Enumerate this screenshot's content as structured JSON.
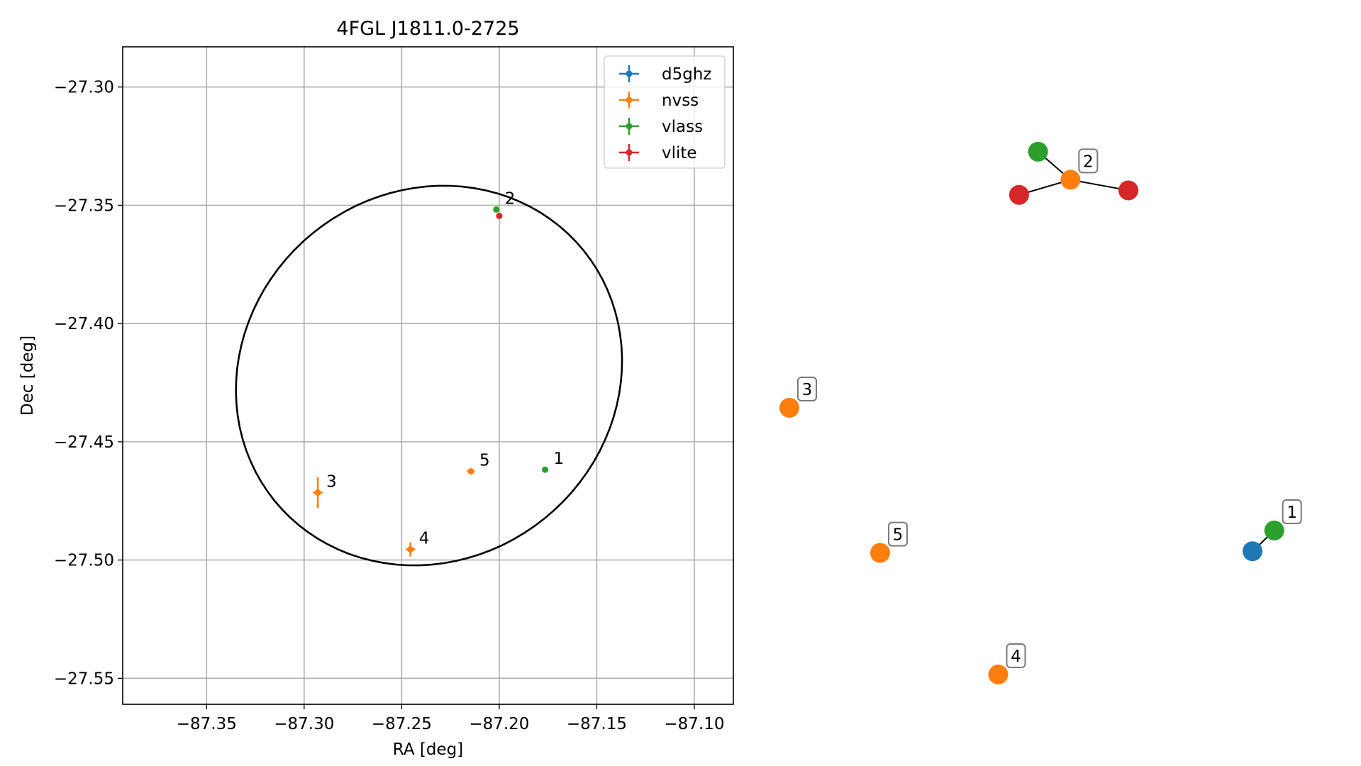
{
  "chart_data": [
    {
      "type": "scatter",
      "title": "4FGL J1811.0-2725",
      "xlabel": "RA [deg]",
      "ylabel": "Dec [deg]",
      "xlim": [
        -87.393,
        -87.08
      ],
      "ylim": [
        -27.561,
        -27.283
      ],
      "xticks": [
        -87.35,
        -87.3,
        -87.25,
        -87.2,
        -87.15,
        -87.1
      ],
      "xtick_labels": [
        "−87.35",
        "−87.30",
        "−87.25",
        "−87.20",
        "−87.15",
        "−87.10"
      ],
      "yticks": [
        -27.3,
        -27.35,
        -27.4,
        -27.45,
        -27.5,
        -27.55
      ],
      "ytick_labels": [
        "−27.30",
        "−27.35",
        "−27.40",
        "−27.45",
        "−27.50",
        "−27.55"
      ],
      "grid": true,
      "legend_position": "top-right",
      "ellipse": {
        "center": [
          -87.236,
          -27.422
        ],
        "semi_x": 0.0995,
        "semi_y": 0.0796,
        "angle_deg": 10
      },
      "series": [
        {
          "name": "d5ghz",
          "color": "#1f77b4",
          "points": []
        },
        {
          "name": "nvss",
          "color": "#ff7f0e",
          "points": [
            {
              "x": -87.2145,
              "y": -27.4625,
              "xerr": 0.002,
              "yerr": 0.0008
            },
            {
              "x": -87.293,
              "y": -27.4715,
              "xerr": 0.0025,
              "yerr": 0.0065
            },
            {
              "x": -87.2455,
              "y": -27.4955,
              "xerr": 0.0025,
              "yerr": 0.003
            }
          ]
        },
        {
          "name": "vlass",
          "color": "#2ca02c",
          "points": [
            {
              "x": -87.2015,
              "y": -27.3518,
              "xerr": 0.0005,
              "yerr": 0.0005
            },
            {
              "x": -87.1765,
              "y": -27.4618,
              "xerr": 0.0005,
              "yerr": 0.0005
            }
          ]
        },
        {
          "name": "vlite",
          "color": "#d62728",
          "points": [
            {
              "x": -87.2,
              "y": -27.3545,
              "xerr": 0.0008,
              "yerr": 0.0012
            }
          ]
        }
      ],
      "annotations": [
        {
          "text": "1",
          "x": -87.1765,
          "y": -27.4618
        },
        {
          "text": "2",
          "x": -87.2015,
          "y": -27.3518
        },
        {
          "text": "3",
          "x": -87.293,
          "y": -27.4715
        },
        {
          "text": "4",
          "x": -87.2455,
          "y": -27.4955
        },
        {
          "text": "5",
          "x": -87.2145,
          "y": -27.4625
        }
      ]
    },
    {
      "type": "network",
      "nodes": [
        {
          "id": "d5ghz-1",
          "color": "#1f77b4",
          "x": 1.0,
          "y": 0.22
        },
        {
          "id": "vlass-1",
          "color": "#2ca02c",
          "x": 1.047,
          "y": 0.257
        },
        {
          "id": "vlass-2",
          "color": "#2ca02c",
          "x": 0.537,
          "y": 0.933
        },
        {
          "id": "nvss-2",
          "color": "#ff7f0e",
          "x": 0.607,
          "y": 0.883
        },
        {
          "id": "vlite-2a",
          "color": "#d62728",
          "x": 0.496,
          "y": 0.856
        },
        {
          "id": "vlite-2b",
          "color": "#d62728",
          "x": 0.732,
          "y": 0.864
        },
        {
          "id": "nvss-3",
          "color": "#ff7f0e",
          "x": 0.0,
          "y": 0.476
        },
        {
          "id": "nvss-5",
          "color": "#ff7f0e",
          "x": 0.196,
          "y": 0.217
        },
        {
          "id": "nvss-4",
          "color": "#ff7f0e",
          "x": 0.451,
          "y": 0.0
        }
      ],
      "edges": [
        [
          "d5ghz-1",
          "vlass-1"
        ],
        [
          "vlass-2",
          "nvss-2"
        ],
        [
          "nvss-2",
          "vlite-2a"
        ],
        [
          "nvss-2",
          "vlite-2b"
        ]
      ],
      "labels": [
        {
          "text": "1",
          "node": "vlass-1"
        },
        {
          "text": "2",
          "node": "nvss-2"
        },
        {
          "text": "3",
          "node": "nvss-3"
        },
        {
          "text": "4",
          "node": "nvss-4"
        },
        {
          "text": "5",
          "node": "nvss-5"
        }
      ]
    }
  ]
}
